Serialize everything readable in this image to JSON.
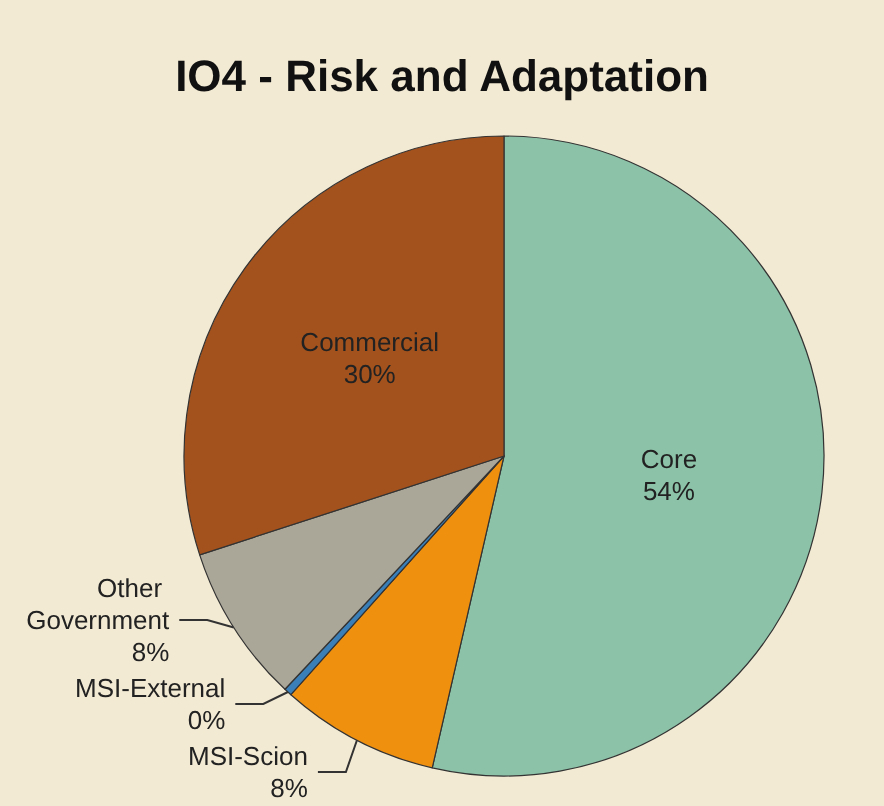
{
  "chart_data": {
    "type": "pie",
    "title": "IO4 - Risk and Adaptation",
    "categories": [
      "Core",
      "MSI-Scion",
      "MSI-External",
      "Other Government",
      "Commercial"
    ],
    "values": [
      53.6,
      8,
      0.4,
      8,
      30
    ],
    "value_labels": [
      "54%",
      "8%",
      "0%",
      "8%",
      "30%"
    ],
    "colors": [
      "#8cc2a8",
      "#f0900f",
      "#3b7fb8",
      "#aaa698",
      "#a4521d"
    ],
    "legend": false
  }
}
